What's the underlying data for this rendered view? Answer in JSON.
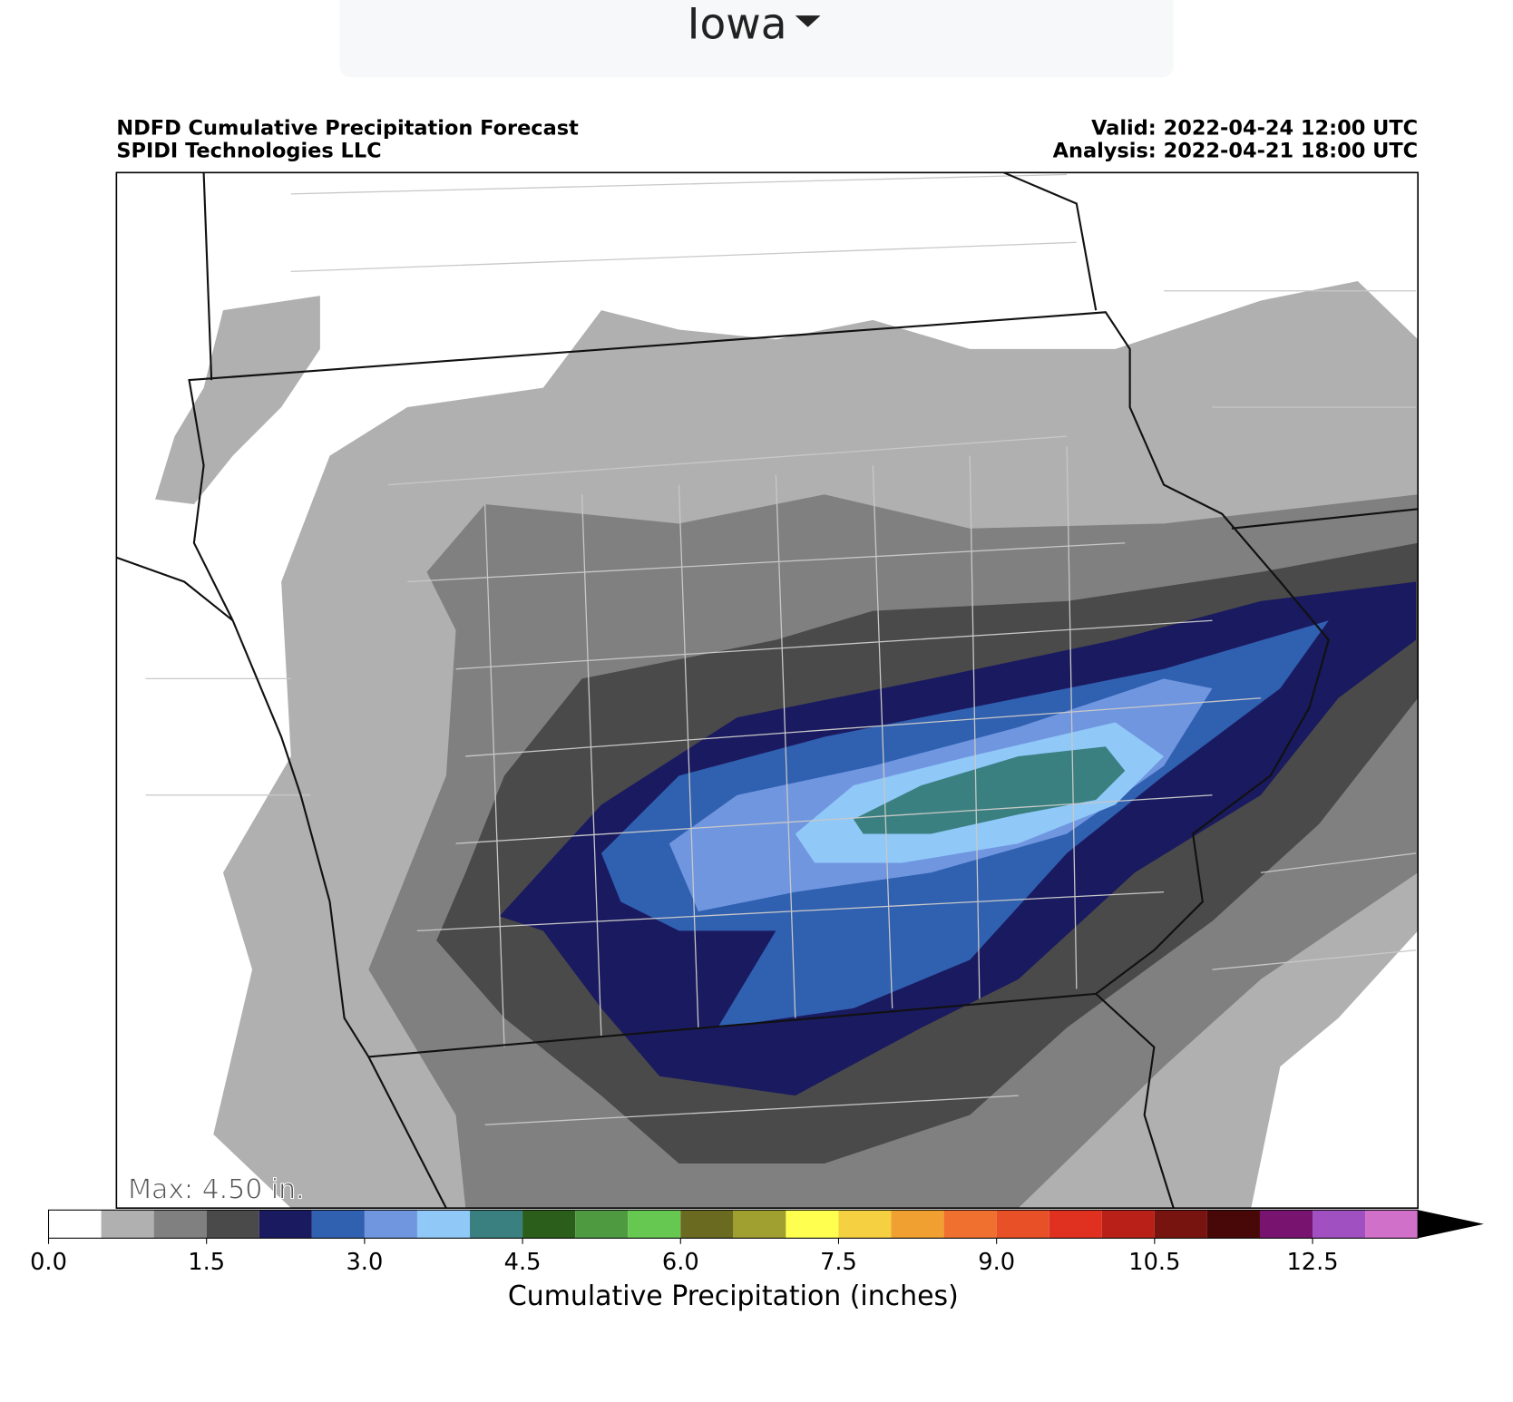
{
  "header": {
    "region": "Iowa"
  },
  "map": {
    "title": "NDFD Cumulative Precipitation Forecast",
    "subtitle": "SPIDI Technologies LLC",
    "valid": "Valid: 2022-04-24 12:00 UTC",
    "analysis": "Analysis: 2022-04-21 18:00 UTC",
    "max_label": "Max: 4.50 in."
  },
  "colorbar": {
    "label": "Cumulative Precipitation (inches)",
    "extend": "max",
    "extend_color": "#000000",
    "bounds": [
      0,
      0.5,
      1,
      1.5,
      2,
      2.5,
      3,
      3.5,
      4,
      4.5,
      5,
      5.5,
      6,
      6.5,
      7,
      7.5,
      8,
      8.5,
      9,
      9.5,
      10,
      10.5,
      11,
      12,
      12.5,
      13,
      14
    ],
    "colors": [
      "#ffffff",
      "#b0b0b0",
      "#808080",
      "#4a4a4a",
      "#1a1a60",
      "#3060b0",
      "#7096e0",
      "#90c8f8",
      "#3a8080",
      "#2a5e1a",
      "#4e9a40",
      "#66c850",
      "#6a6a20",
      "#a0a030",
      "#ffff50",
      "#f5d040",
      "#f0a030",
      "#f07030",
      "#e85028",
      "#e03020",
      "#b82018",
      "#781410",
      "#480808",
      "#781470",
      "#a050c0",
      "#d070c8"
    ],
    "ticks": [
      {
        "value": 0,
        "label": "0.0"
      },
      {
        "value": 1.5,
        "label": "1.5"
      },
      {
        "value": 3,
        "label": "3.0"
      },
      {
        "value": 4.5,
        "label": "4.5"
      },
      {
        "value": 6,
        "label": "6.0"
      },
      {
        "value": 7.5,
        "label": "7.5"
      },
      {
        "value": 9,
        "label": "9.0"
      },
      {
        "value": 10.5,
        "label": "10.5"
      },
      {
        "value": 12.5,
        "label": "12.5"
      }
    ]
  }
}
